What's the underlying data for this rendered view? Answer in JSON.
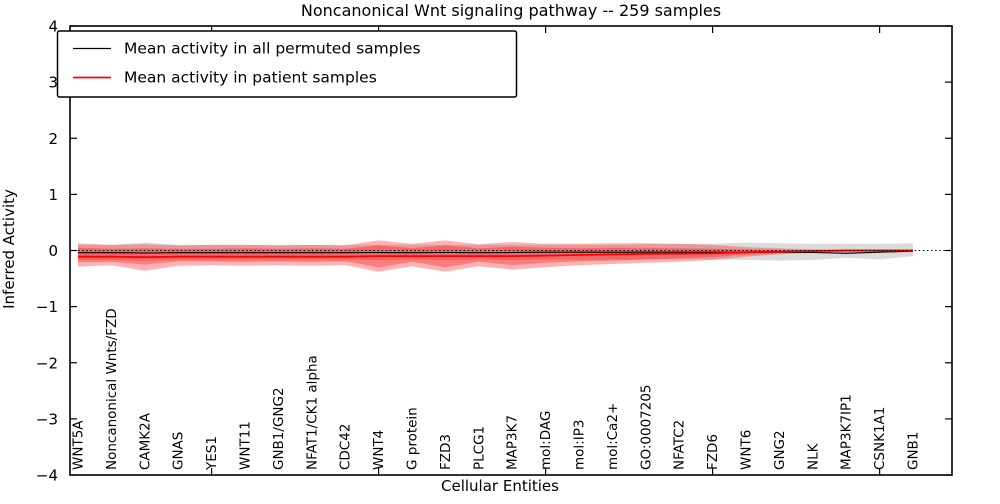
{
  "title": "Noncanonical Wnt signaling pathway -- 259 samples",
  "axes": {
    "ylabel": "Inferred Activity",
    "xlabel": "Cellular Entities"
  },
  "legend": {
    "items": [
      {
        "label": "Mean activity in all permuted samples",
        "color": "#000000"
      },
      {
        "label": "Mean activity in patient samples",
        "color": "#ff0000"
      }
    ]
  },
  "colors": {
    "patient_line": "#ff0000",
    "permuted_line": "#000000",
    "patient_band": "#ff0000",
    "permuted_band": "#999999",
    "frame": "#000000",
    "background": "#ffffff"
  },
  "chart_data": {
    "type": "line",
    "title": "Noncanonical Wnt signaling pathway -- 259 samples",
    "xlabel": "Cellular Entities",
    "ylabel": "Inferred Activity",
    "ylim": [
      -4,
      4
    ],
    "grid": false,
    "legend_position": "upper left",
    "zero_line": 0,
    "yticks": [
      4,
      3,
      2,
      1,
      0,
      -1,
      -2,
      -3,
      -4
    ],
    "ytick_labels": [
      "4",
      "3",
      "2",
      "1",
      "0",
      "−1",
      "−2",
      "−3",
      "−4"
    ],
    "xtick_indices": [
      4,
      9,
      14,
      19,
      24
    ],
    "categories": [
      "WNT5A",
      "Noncanonical Wnts/FZD",
      "CAMK2A",
      "GNAS",
      "YES1",
      "WNT11",
      "GNB1/GNG2",
      "NFAT1/CK1 alpha",
      "CDC42",
      "WNT4",
      "G protein",
      "FZD3",
      "PLCG1",
      "MAP3K7",
      "mol:DAG",
      "mol:IP3",
      "mol:Ca2+",
      "GO:0007205",
      "NFATC2",
      "FZD6",
      "WNT6",
      "GNG2",
      "NLK",
      "MAP3K7IP1",
      "CSNK1A1",
      "GNB1"
    ],
    "series": [
      {
        "name": "Mean activity in all permuted samples",
        "color": "#000000",
        "values": [
          -0.04,
          -0.04,
          -0.045,
          -0.04,
          -0.04,
          -0.04,
          -0.04,
          -0.04,
          -0.04,
          -0.035,
          -0.04,
          -0.035,
          -0.04,
          -0.035,
          -0.03,
          -0.03,
          -0.03,
          -0.03,
          -0.03,
          -0.03,
          -0.03,
          -0.03,
          -0.035,
          -0.05,
          -0.03,
          -0.01
        ]
      },
      {
        "name": "Mean activity in patient samples",
        "color": "#ff0000",
        "values": [
          -0.11,
          -0.11,
          -0.12,
          -0.11,
          -0.11,
          -0.11,
          -0.11,
          -0.11,
          -0.11,
          -0.1,
          -0.1,
          -0.1,
          -0.1,
          -0.1,
          -0.09,
          -0.08,
          -0.07,
          -0.06,
          -0.055,
          -0.05,
          -0.03,
          -0.02,
          -0.01,
          0.0,
          0.0,
          0.0
        ]
      }
    ],
    "bands": [
      {
        "name": "permuted-range",
        "color": "#999999",
        "opacity": 0.35,
        "upper": [
          0.1,
          0.1,
          0.14,
          0.1,
          0.1,
          0.1,
          0.1,
          0.1,
          0.1,
          0.1,
          0.1,
          0.1,
          0.1,
          0.1,
          0.1,
          0.1,
          0.1,
          0.11,
          0.11,
          0.12,
          0.14,
          0.13,
          0.12,
          0.12,
          0.12,
          0.13
        ],
        "lower": [
          -0.17,
          -0.17,
          -0.18,
          -0.17,
          -0.16,
          -0.16,
          -0.16,
          -0.16,
          -0.16,
          -0.17,
          -0.16,
          -0.17,
          -0.16,
          -0.17,
          -0.16,
          -0.16,
          -0.16,
          -0.16,
          -0.16,
          -0.16,
          -0.17,
          -0.18,
          -0.17,
          -0.13,
          -0.16,
          -0.1
        ]
      },
      {
        "name": "patient-range-outer",
        "color": "#ff0000",
        "opacity": 0.3,
        "upper": [
          0.13,
          0.1,
          0.11,
          0.09,
          0.1,
          0.1,
          0.09,
          0.1,
          0.09,
          0.18,
          0.12,
          0.18,
          0.11,
          0.15,
          0.12,
          0.12,
          0.13,
          0.13,
          0.12,
          0.1,
          0.06,
          0.04,
          0.02,
          0.02,
          0.02,
          0.02
        ],
        "lower": [
          -0.29,
          -0.26,
          -0.36,
          -0.27,
          -0.26,
          -0.27,
          -0.26,
          -0.27,
          -0.26,
          -0.38,
          -0.28,
          -0.38,
          -0.28,
          -0.34,
          -0.3,
          -0.26,
          -0.24,
          -0.22,
          -0.2,
          -0.17,
          -0.11,
          -0.07,
          -0.04,
          -0.03,
          -0.03,
          -0.03
        ]
      },
      {
        "name": "patient-range-inner",
        "color": "#ff0000",
        "opacity": 0.3,
        "upper": [
          0.05,
          0.03,
          0.04,
          0.03,
          0.03,
          0.04,
          0.03,
          0.04,
          0.03,
          0.09,
          0.04,
          0.09,
          0.04,
          0.07,
          0.05,
          0.04,
          0.05,
          0.05,
          0.04,
          0.03,
          0.02,
          0.01,
          0.01,
          0.01,
          0.01,
          0.01
        ],
        "lower": [
          -0.21,
          -0.2,
          -0.25,
          -0.19,
          -0.19,
          -0.2,
          -0.19,
          -0.2,
          -0.19,
          -0.3,
          -0.2,
          -0.3,
          -0.2,
          -0.26,
          -0.22,
          -0.19,
          -0.18,
          -0.16,
          -0.14,
          -0.12,
          -0.07,
          -0.05,
          -0.03,
          -0.02,
          -0.02,
          -0.02
        ]
      }
    ]
  }
}
